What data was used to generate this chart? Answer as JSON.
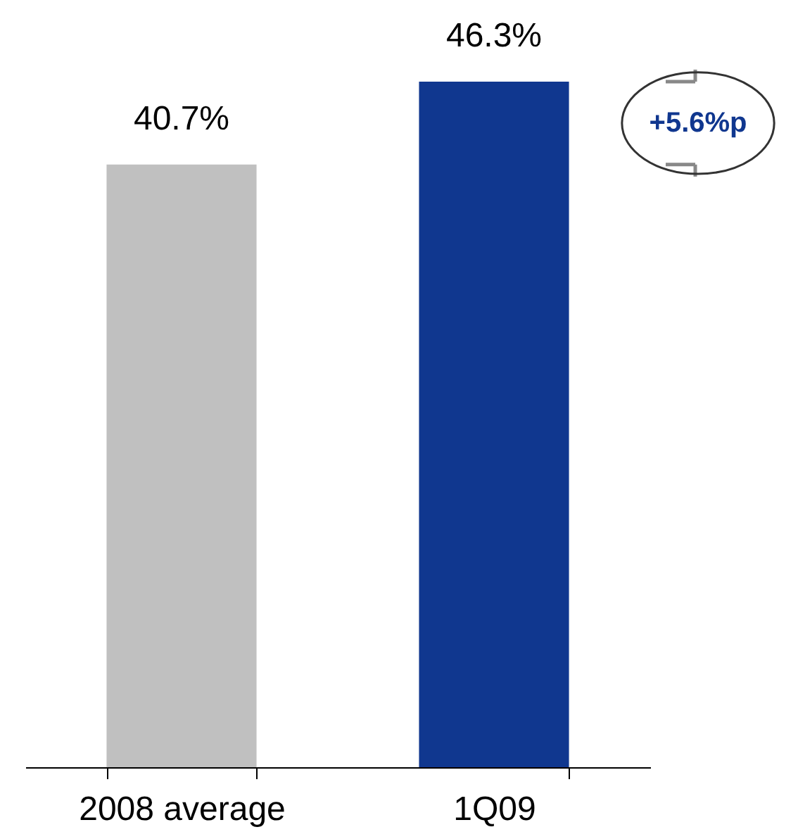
{
  "chart_data": {
    "type": "bar",
    "categories": [
      "2008 average",
      "1Q09"
    ],
    "values": [
      40.7,
      46.3
    ],
    "colors": [
      "#c0c0c0",
      "#10378f"
    ],
    "value_labels": [
      "40.7%",
      "46.3%"
    ],
    "tick_labels": "x",
    "grid": false,
    "legend": false,
    "annotations": [
      "+5.6%p"
    ]
  }
}
